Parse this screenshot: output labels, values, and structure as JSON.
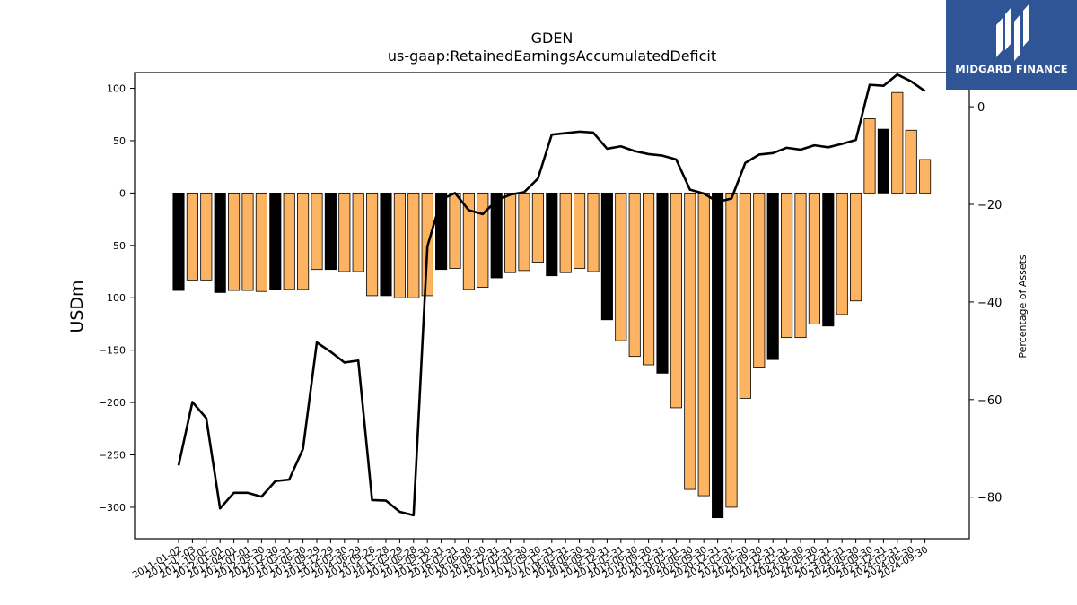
{
  "logo": {
    "text": "MIDGARD FINANCE",
    "background": "#2f5597"
  },
  "chart_data": {
    "type": "bar",
    "title": "GDEN",
    "subtitle": "us-gaap:RetainedEarningsAccumulatedDeficit",
    "ylabel": "USDm",
    "y2label": "Percentage of Assets",
    "ylim": [
      -330,
      115
    ],
    "y2lim": [
      -88.5,
      7
    ],
    "yticks": [
      100,
      50,
      0,
      -50,
      -100,
      -150,
      -200,
      -250,
      -300
    ],
    "y2ticks": [
      0,
      -20,
      -40,
      -60,
      -80
    ],
    "colors": {
      "annual": "#000000",
      "quarterly": "#fdb462",
      "line": "#000000"
    },
    "tick_labels": [
      "2011-01-02",
      "2011-07-03",
      "2011-10-02",
      "2012-01-01",
      "2012-04-01",
      "2012-07-01",
      "2012-09-30",
      "2012-12-30",
      "2013-03-31",
      "2013-06-30",
      "2013-09-29",
      "2013-12-29",
      "2014-03-30",
      "2014-06-29",
      "2014-09-28",
      "2014-12-28",
      "2015-03-29",
      "2015-06-28",
      "2015-09-30",
      "2015-12-31",
      "2016-03-31",
      "2016-06-30",
      "2016-09-30",
      "2016-12-31",
      "2017-03-31",
      "2017-06-30",
      "2017-09-30",
      "2017-12-31",
      "2018-03-31",
      "2018-06-30",
      "2018-09-30",
      "2018-12-31",
      "2019-03-31",
      "2019-06-30",
      "2019-09-30",
      "2019-12-31",
      "2020-03-31",
      "2020-06-30",
      "2020-09-30",
      "2020-12-31",
      "2021-03-31",
      "2021-06-30",
      "2021-09-30",
      "2021-12-31",
      "2022-03-31",
      "2022-06-30",
      "2022-09-30",
      "2022-12-31",
      "2023-03-31",
      "2023-06-30",
      "2023-09-30",
      "2023-12-31",
      "2024-03-31",
      "2024-06-30",
      "2024-09-30"
    ],
    "values": [
      -93,
      -83,
      -83,
      -95,
      -93,
      -93,
      -94,
      -92,
      -92,
      -92,
      -73,
      -73,
      -75,
      -75,
      -98,
      -98,
      -100,
      -100,
      -98,
      -73,
      -72,
      -92,
      -90,
      -81,
      -76,
      -74,
      -66,
      -79,
      -76,
      -72,
      -75,
      -121,
      -141,
      -156,
      -164,
      -172,
      -205,
      -283,
      -289,
      -310,
      -300,
      -196,
      -167,
      -159,
      -138,
      -138,
      -125,
      -127,
      -116,
      -103,
      71,
      61,
      96,
      60,
      32
    ],
    "annual": [
      true,
      false,
      false,
      true,
      false,
      false,
      false,
      true,
      false,
      false,
      false,
      true,
      false,
      false,
      false,
      true,
      false,
      false,
      false,
      true,
      false,
      false,
      false,
      true,
      false,
      false,
      false,
      true,
      false,
      false,
      false,
      true,
      false,
      false,
      false,
      true,
      false,
      false,
      false,
      true,
      false,
      false,
      false,
      true,
      false,
      false,
      false,
      true,
      false,
      false,
      false,
      true,
      false,
      false,
      false
    ],
    "pct_assets": [
      -73.5,
      -60.5,
      -63.8,
      -82.3,
      -79.1,
      -79.1,
      -79.9,
      -76.7,
      -76.4,
      -70.1,
      -48.3,
      -50.2,
      -52.4,
      -52.0,
      -80.6,
      -80.7,
      -83.0,
      -83.7,
      -28.6,
      -19.0,
      -17.7,
      -21.2,
      -22.0,
      -19.2,
      -18.0,
      -17.5,
      -14.7,
      -5.7,
      -5.4,
      -5.1,
      -5.3,
      -8.6,
      -8.1,
      -9.1,
      -9.7,
      -10.0,
      -10.8,
      -17.0,
      -17.8,
      -19.5,
      -18.8,
      -11.5,
      -9.8,
      -9.5,
      -8.4,
      -8.8,
      -7.9,
      -8.3,
      -7.6,
      -6.8,
      4.5,
      4.3,
      6.6,
      5.2,
      3.2
    ]
  }
}
